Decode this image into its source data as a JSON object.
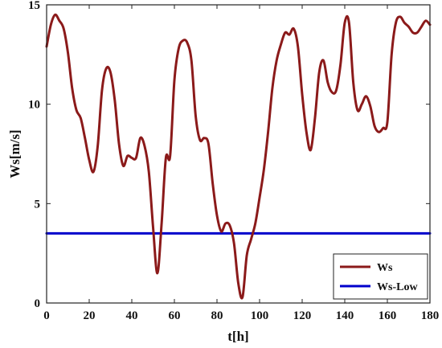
{
  "chart_data": {
    "type": "line",
    "title": "",
    "xlabel": "t[h]",
    "ylabel": "Ws[m/s]",
    "xlim": [
      0,
      180
    ],
    "ylim": [
      0,
      15
    ],
    "xticks": [
      "0",
      "20",
      "40",
      "60",
      "80",
      "100",
      "120",
      "140",
      "160",
      "180"
    ],
    "yticks": [
      "0",
      "5",
      "10",
      "15"
    ],
    "legend_position": "bottom-right",
    "grid": false,
    "series": [
      {
        "name": "Ws",
        "color": "#8b1a1a",
        "x": [
          0,
          2,
          4,
          6,
          8,
          10,
          12,
          14,
          16,
          18,
          20,
          22,
          24,
          26,
          28,
          30,
          32,
          34,
          36,
          38,
          40,
          42,
          44,
          46,
          48,
          50,
          52,
          54,
          56,
          58,
          60,
          62,
          64,
          66,
          68,
          70,
          72,
          74,
          76,
          78,
          80,
          82,
          84,
          86,
          88,
          90,
          92,
          94,
          96,
          98,
          100,
          102,
          104,
          106,
          108,
          110,
          112,
          114,
          116,
          118,
          120,
          122,
          124,
          126,
          128,
          130,
          132,
          134,
          136,
          138,
          140,
          142,
          144,
          146,
          148,
          150,
          152,
          154,
          156,
          158,
          160,
          162,
          164,
          166,
          168,
          170,
          172,
          174,
          176,
          178,
          180
        ],
        "y": [
          12.9,
          14.0,
          14.5,
          14.2,
          13.8,
          12.6,
          10.8,
          9.7,
          9.3,
          8.3,
          7.2,
          6.6,
          7.9,
          10.7,
          11.8,
          11.6,
          10.2,
          8.0,
          6.9,
          7.4,
          7.3,
          7.3,
          8.3,
          7.9,
          6.6,
          3.8,
          1.5,
          4.0,
          7.3,
          7.4,
          11.2,
          12.8,
          13.2,
          13.1,
          12.2,
          9.4,
          8.2,
          8.3,
          8.0,
          6.0,
          4.4,
          3.6,
          4.0,
          3.9,
          3.0,
          1.0,
          0.3,
          2.4,
          3.2,
          4.0,
          5.3,
          6.7,
          8.6,
          10.8,
          12.2,
          13.0,
          13.6,
          13.5,
          13.8,
          12.9,
          10.5,
          8.6,
          7.7,
          9.3,
          11.6,
          12.2,
          11.1,
          10.6,
          10.7,
          12.0,
          14.1,
          14.1,
          11.1,
          9.7,
          10.0,
          10.4,
          9.9,
          8.9,
          8.6,
          8.8,
          9.1,
          12.5,
          14.1,
          14.4,
          14.1,
          13.9,
          13.6,
          13.6,
          13.9,
          14.2,
          14.0
        ]
      },
      {
        "name": "Ws-Low",
        "color": "#0000cc",
        "x": [
          0,
          180
        ],
        "y": [
          3.5,
          3.5
        ]
      }
    ]
  }
}
